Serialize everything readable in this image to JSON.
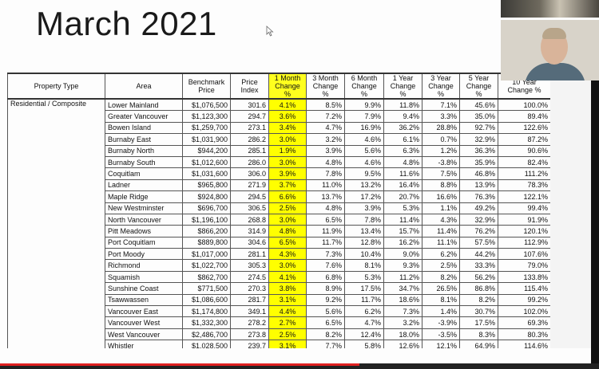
{
  "slide": {
    "title": "March 2021"
  },
  "table": {
    "headers": [
      "Property Type",
      "Area",
      "Benchmark Price",
      "Price Index",
      "1 Month Change %",
      "3 Month Change %",
      "6 Month Change %",
      "1 Year Change %",
      "3 Year Change %",
      "5 Year Change %",
      "10 Year Change %"
    ],
    "property_type": "Residential / Composite",
    "rows": [
      [
        "Lower Mainland",
        "$1,076,500",
        "301.6",
        "4.1%",
        "8.5%",
        "9.9%",
        "11.8%",
        "7.1%",
        "45.6%",
        "100.0%"
      ],
      [
        "Greater Vancouver",
        "$1,123,300",
        "294.7",
        "3.6%",
        "7.2%",
        "7.9%",
        "9.4%",
        "3.3%",
        "35.0%",
        "89.4%"
      ],
      [
        "Bowen Island",
        "$1,259,700",
        "273.1",
        "3.4%",
        "4.7%",
        "16.9%",
        "36.2%",
        "28.8%",
        "92.7%",
        "122.6%"
      ],
      [
        "Burnaby East",
        "$1,031,900",
        "286.2",
        "3.0%",
        "3.2%",
        "4.6%",
        "6.1%",
        "0.7%",
        "32.9%",
        "87.2%"
      ],
      [
        "Burnaby North",
        "$944,200",
        "285.1",
        "1.9%",
        "3.9%",
        "5.6%",
        "6.3%",
        "1.2%",
        "36.3%",
        "90.6%"
      ],
      [
        "Burnaby South",
        "$1,012,600",
        "286.0",
        "3.0%",
        "4.8%",
        "4.6%",
        "4.8%",
        "-3.8%",
        "35.9%",
        "82.4%"
      ],
      [
        "Coquitlam",
        "$1,031,600",
        "306.0",
        "3.9%",
        "7.8%",
        "9.5%",
        "11.6%",
        "7.5%",
        "46.8%",
        "111.2%"
      ],
      [
        "Ladner",
        "$965,800",
        "271.9",
        "3.7%",
        "11.0%",
        "13.2%",
        "16.4%",
        "8.8%",
        "13.9%",
        "78.3%"
      ],
      [
        "Maple Ridge",
        "$924,800",
        "294.5",
        "6.6%",
        "13.7%",
        "17.2%",
        "20.7%",
        "16.6%",
        "76.3%",
        "122.1%"
      ],
      [
        "New Westminster",
        "$696,700",
        "306.5",
        "2.5%",
        "4.8%",
        "3.9%",
        "5.3%",
        "1.1%",
        "49.2%",
        "99.4%"
      ],
      [
        "North Vancouver",
        "$1,196,100",
        "268.8",
        "3.0%",
        "6.5%",
        "7.8%",
        "11.4%",
        "4.3%",
        "32.9%",
        "91.9%"
      ],
      [
        "Pitt Meadows",
        "$866,200",
        "314.9",
        "4.8%",
        "11.9%",
        "13.4%",
        "15.7%",
        "11.4%",
        "76.2%",
        "120.1%"
      ],
      [
        "Port Coquitlam",
        "$889,800",
        "304.6",
        "6.5%",
        "11.7%",
        "12.8%",
        "16.2%",
        "11.1%",
        "57.5%",
        "112.9%"
      ],
      [
        "Port Moody",
        "$1,017,000",
        "281.1",
        "4.3%",
        "7.3%",
        "10.4%",
        "9.0%",
        "6.2%",
        "44.2%",
        "107.6%"
      ],
      [
        "Richmond",
        "$1,022,700",
        "305.3",
        "3.0%",
        "7.6%",
        "8.1%",
        "9.3%",
        "2.5%",
        "33.3%",
        "79.0%"
      ],
      [
        "Squamish",
        "$862,700",
        "274.5",
        "4.1%",
        "6.8%",
        "5.3%",
        "11.2%",
        "8.2%",
        "56.2%",
        "133.8%"
      ],
      [
        "Sunshine Coast",
        "$771,500",
        "270.3",
        "3.8%",
        "8.9%",
        "17.5%",
        "34.7%",
        "26.5%",
        "86.8%",
        "115.4%"
      ],
      [
        "Tsawwassen",
        "$1,086,600",
        "281.7",
        "3.1%",
        "9.2%",
        "11.7%",
        "18.6%",
        "8.1%",
        "8.2%",
        "99.2%"
      ],
      [
        "Vancouver East",
        "$1,174,800",
        "349.1",
        "4.4%",
        "5.6%",
        "6.2%",
        "7.3%",
        "1.4%",
        "30.7%",
        "102.0%"
      ],
      [
        "Vancouver West",
        "$1,332,300",
        "278.2",
        "2.7%",
        "6.5%",
        "4.7%",
        "3.2%",
        "-3.9%",
        "17.5%",
        "69.3%"
      ],
      [
        "West Vancouver",
        "$2,486,700",
        "273.8",
        "2.5%",
        "8.2%",
        "12.4%",
        "18.0%",
        "-3.5%",
        "8.3%",
        "80.3%"
      ],
      [
        "Whistler",
        "$1,028,500",
        "239.7",
        "3.1%",
        "7.7%",
        "5.8%",
        "12.6%",
        "12.1%",
        "64.9%",
        "114.6%"
      ]
    ]
  },
  "colors": {
    "highlight": "#ffff00",
    "progress": "#e02020"
  },
  "player": {
    "progress": 0.6
  }
}
